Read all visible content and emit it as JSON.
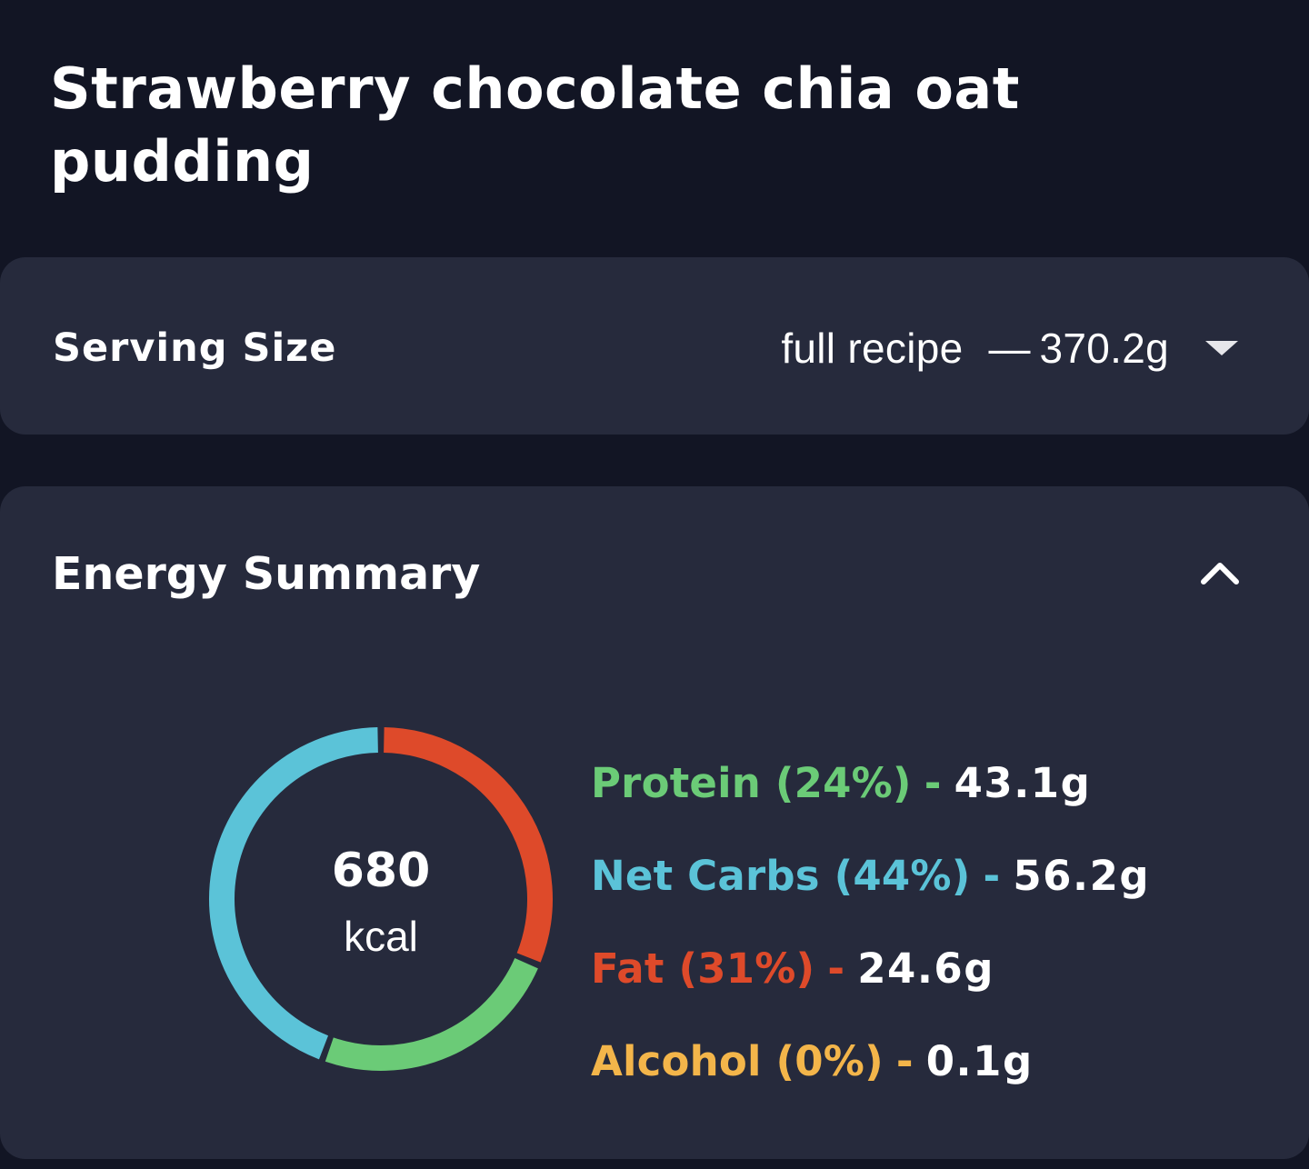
{
  "recipe": {
    "title": "Strawberry chocolate chia oat pudding"
  },
  "serving": {
    "label": "Serving Size",
    "value": "full recipe",
    "separator": "—",
    "weight": "370.2g",
    "dropdown_icon": "caret-down-icon"
  },
  "energy": {
    "heading": "Energy Summary",
    "collapse_icon": "chevron-up-icon",
    "kcal": "680",
    "unit": "kcal",
    "macros": [
      {
        "label": "Protein",
        "percent": "(24%)",
        "amount": "43.1g",
        "color": "#6bcb77"
      },
      {
        "label": "Net Carbs",
        "percent": "(44%)",
        "amount": "56.2g",
        "color": "#5bc3d8"
      },
      {
        "label": "Fat",
        "percent": "(31%)",
        "amount": "24.6g",
        "color": "#de4a2a"
      },
      {
        "label": "Alcohol",
        "percent": "(0%)",
        "amount": "0.1g",
        "color": "#f3b54a"
      }
    ]
  },
  "chart_data": {
    "type": "pie",
    "title": "Energy Summary",
    "center_label": "680 kcal",
    "categories": [
      "Fat",
      "Protein",
      "Net Carbs",
      "Alcohol"
    ],
    "values": [
      31,
      24,
      44,
      0
    ],
    "colors": [
      "#de4a2a",
      "#6bcb77",
      "#5bc3d8",
      "#f3b54a"
    ],
    "unit": "percent of energy"
  }
}
